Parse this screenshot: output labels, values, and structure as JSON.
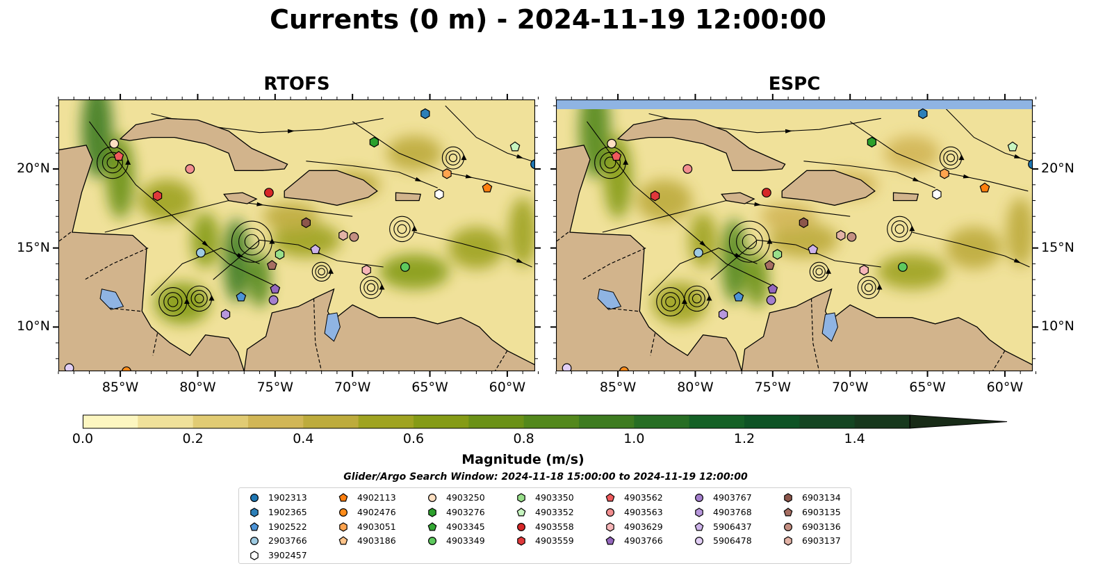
{
  "title": "Currents (0 m) - 2024-11-19 12:00:00",
  "panels": [
    {
      "title": "RTOFS"
    },
    {
      "title": "ESPC"
    }
  ],
  "axes": {
    "lon_labels": [
      "85°W",
      "80°W",
      "75°W",
      "70°W",
      "65°W",
      "60°W"
    ],
    "lon_values": [
      -85,
      -80,
      -75,
      -70,
      -65,
      -60
    ],
    "lat_labels": [
      "20°N",
      "15°N",
      "10°N"
    ],
    "lat_values": [
      20,
      15,
      10
    ],
    "lon_range": [
      -89,
      -58.2
    ],
    "lat_range": [
      7.2,
      24.4
    ]
  },
  "colorbar": {
    "title": "Magnitude (m/s)",
    "tick_labels": [
      "0.0",
      "0.2",
      "0.4",
      "0.6",
      "0.8",
      "1.0",
      "1.2",
      "1.4"
    ],
    "tick_values": [
      0,
      0.2,
      0.4,
      0.6,
      0.8,
      1.0,
      1.2,
      1.4
    ],
    "range": [
      0,
      1.5
    ],
    "extend": "max",
    "colors": [
      "#fcf6c0",
      "#f0e19a",
      "#e1cb73",
      "#d1b656",
      "#bdab3c",
      "#9fa321",
      "#859b16",
      "#6b9117",
      "#53881c",
      "#3d7b20",
      "#276e24",
      "#146026",
      "#0d5325",
      "#144522",
      "#17381d",
      "#182b17"
    ]
  },
  "search_window": "Glider/Argo Search Window: 2024-11-18 15:00:00 to 2024-11-19 12:00:00",
  "legend": {
    "columns": [
      [
        {
          "label": "1902313",
          "shape": "circle",
          "color": "#1f77b4"
        },
        {
          "label": "1902365",
          "shape": "hexagon",
          "color": "#2c7fb8"
        },
        {
          "label": "1902522",
          "shape": "pentagon",
          "color": "#4c93d6"
        },
        {
          "label": "2903766",
          "shape": "circle",
          "color": "#9ecae1"
        },
        {
          "label": "3902457",
          "shape": "hexagon",
          "color": "#ffffff"
        }
      ],
      [
        {
          "label": "4902113",
          "shape": "pentagon",
          "color": "#ff7f0e"
        },
        {
          "label": "4902476",
          "shape": "circle",
          "color": "#ff8c1a"
        },
        {
          "label": "4903051",
          "shape": "hexagon",
          "color": "#ffa44f"
        },
        {
          "label": "4903186",
          "shape": "pentagon",
          "color": "#ffc48a"
        }
      ],
      [
        {
          "label": "4903250",
          "shape": "circle",
          "color": "#ffe0c2"
        },
        {
          "label": "4903276",
          "shape": "hexagon",
          "color": "#2ca02c"
        },
        {
          "label": "4903345",
          "shape": "pentagon",
          "color": "#34a834"
        },
        {
          "label": "4903349",
          "shape": "circle",
          "color": "#5ec95e"
        }
      ],
      [
        {
          "label": "4903350",
          "shape": "hexagon",
          "color": "#98df8a"
        },
        {
          "label": "4903352",
          "shape": "pentagon",
          "color": "#c7f5c0"
        },
        {
          "label": "4903558",
          "shape": "circle",
          "color": "#d62728"
        },
        {
          "label": "4903559",
          "shape": "hexagon",
          "color": "#e0393b"
        }
      ],
      [
        {
          "label": "4903562",
          "shape": "pentagon",
          "color": "#ef5a5c"
        },
        {
          "label": "4903563",
          "shape": "circle",
          "color": "#f28e8f"
        },
        {
          "label": "4903629",
          "shape": "hexagon",
          "color": "#f7b6b8"
        },
        {
          "label": "4903766",
          "shape": "pentagon",
          "color": "#9467bd"
        }
      ],
      [
        {
          "label": "4903767",
          "shape": "circle",
          "color": "#a47fce"
        },
        {
          "label": "4903768",
          "shape": "hexagon",
          "color": "#b797dc"
        },
        {
          "label": "5906437",
          "shape": "pentagon",
          "color": "#cdb3ea"
        },
        {
          "label": "5906478",
          "shape": "circle",
          "color": "#e2cff5"
        }
      ],
      [
        {
          "label": "6903134",
          "shape": "hexagon",
          "color": "#8c564b"
        },
        {
          "label": "6903135",
          "shape": "pentagon",
          "color": "#a66e62"
        },
        {
          "label": "6903136",
          "shape": "circle",
          "color": "#c48f82"
        },
        {
          "label": "6903137",
          "shape": "hexagon",
          "color": "#e3b3a6"
        }
      ]
    ]
  },
  "markers": [
    {
      "id": "1902313",
      "lon": -58.2,
      "lat": 20.3
    },
    {
      "id": "1902365",
      "lon": -65.3,
      "lat": 23.5
    },
    {
      "id": "1902522",
      "lon": -77.2,
      "lat": 11.9
    },
    {
      "id": "2903766",
      "lon": -79.8,
      "lat": 14.7
    },
    {
      "id": "3902457",
      "lon": -64.4,
      "lat": 18.4
    },
    {
      "id": "4902113",
      "lon": -61.3,
      "lat": 18.8
    },
    {
      "id": "4902476",
      "lon": -84.6,
      "lat": 7.2
    },
    {
      "id": "4903051",
      "lon": -63.9,
      "lat": 19.7
    },
    {
      "id": "4903250",
      "lon": -85.4,
      "lat": 21.6
    },
    {
      "id": "4903276",
      "lon": -68.6,
      "lat": 21.7
    },
    {
      "id": "4903349",
      "lon": -66.6,
      "lat": 13.8
    },
    {
      "id": "4903350",
      "lon": -74.7,
      "lat": 14.6
    },
    {
      "id": "4903352",
      "lon": -59.5,
      "lat": 21.4
    },
    {
      "id": "4903558",
      "lon": -75.4,
      "lat": 18.5
    },
    {
      "id": "4903559",
      "lon": -82.6,
      "lat": 18.3
    },
    {
      "id": "4903562",
      "lon": -85.1,
      "lat": 20.8
    },
    {
      "id": "4903563",
      "lon": -80.5,
      "lat": 20.0
    },
    {
      "id": "4903629",
      "lon": -69.1,
      "lat": 13.6
    },
    {
      "id": "4903766",
      "lon": -75.0,
      "lat": 12.4
    },
    {
      "id": "4903767",
      "lon": -75.1,
      "lat": 11.7
    },
    {
      "id": "4903768",
      "lon": -78.2,
      "lat": 10.8
    },
    {
      "id": "5906437",
      "lon": -72.4,
      "lat": 14.9
    },
    {
      "id": "5906478",
      "lon": -88.3,
      "lat": 7.4
    },
    {
      "id": "6903134",
      "lon": -73.0,
      "lat": 16.6
    },
    {
      "id": "6903135",
      "lon": -75.2,
      "lat": 13.9
    },
    {
      "id": "6903136",
      "lon": -69.9,
      "lat": 15.7
    },
    {
      "id": "6903137",
      "lon": -70.6,
      "lat": 15.8
    }
  ]
}
